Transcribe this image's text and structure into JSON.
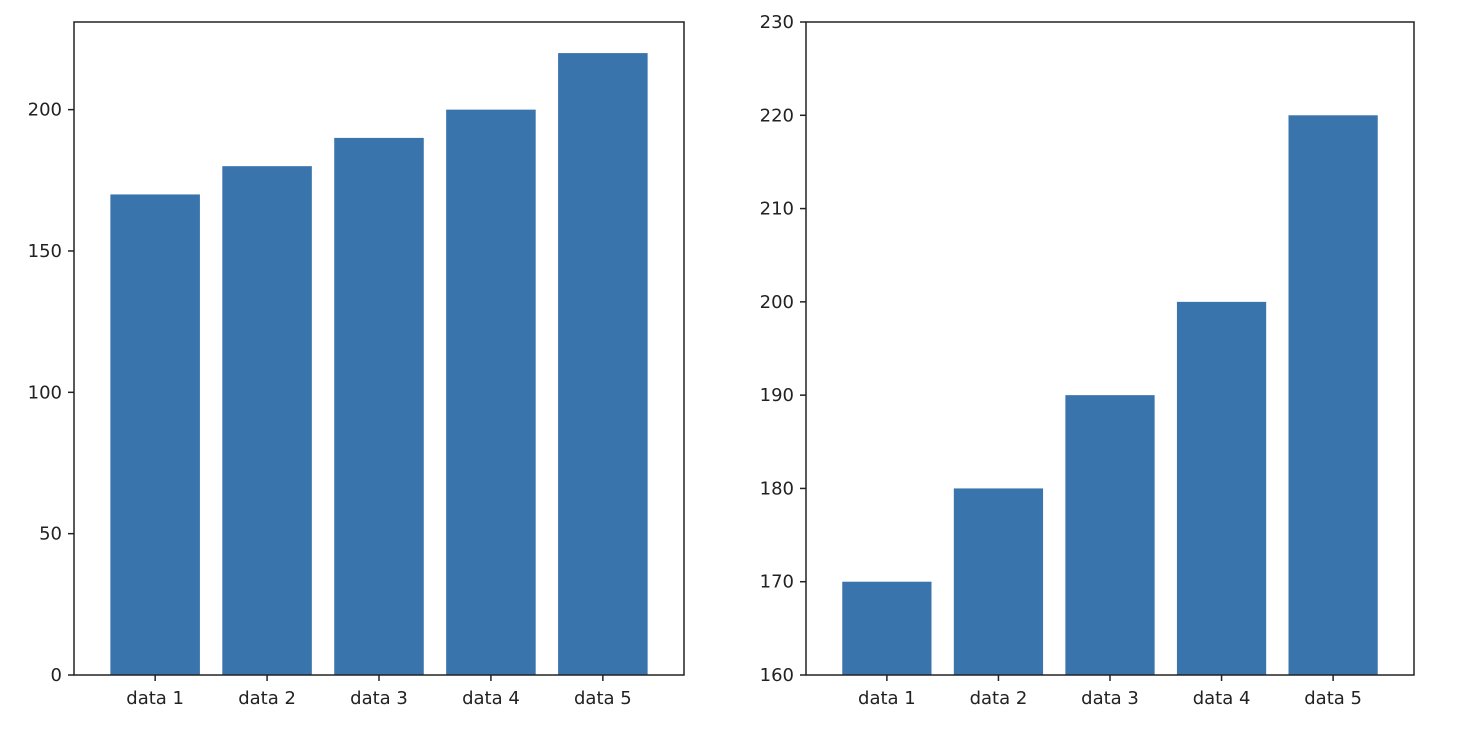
{
  "chart_data": [
    {
      "type": "bar",
      "categories": [
        "data 1",
        "data 2",
        "data 3",
        "data 4",
        "data 5"
      ],
      "values": [
        170,
        180,
        190,
        200,
        220
      ],
      "ylim": [
        0,
        231
      ],
      "yticks": [
        0,
        50,
        100,
        150,
        200
      ],
      "title": "",
      "xlabel": "",
      "ylabel": "",
      "grid": false,
      "bar_color": "#3a74ad"
    },
    {
      "type": "bar",
      "categories": [
        "data 1",
        "data 2",
        "data 3",
        "data 4",
        "data 5"
      ],
      "values": [
        170,
        180,
        190,
        200,
        220
      ],
      "ylim": [
        160,
        230
      ],
      "yticks": [
        160,
        170,
        180,
        190,
        200,
        210,
        220,
        230
      ],
      "title": "",
      "xlabel": "",
      "ylabel": "",
      "grid": false,
      "bar_color": "#3a74ad"
    }
  ]
}
